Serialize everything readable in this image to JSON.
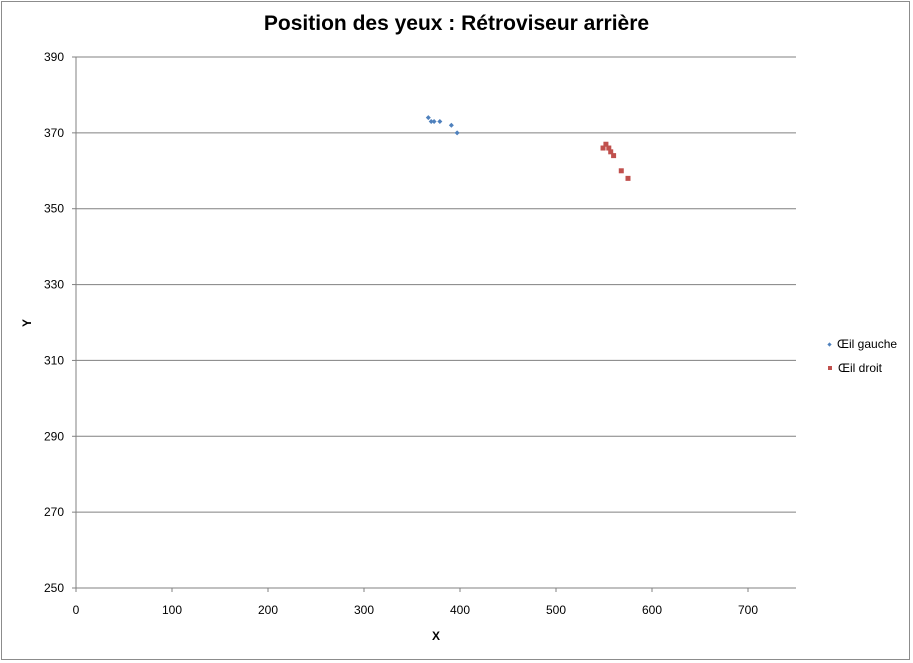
{
  "chart_data": {
    "type": "scatter",
    "title": "Position des yeux :  Rétroviseur arrière",
    "xlabel": "X",
    "ylabel": "Y",
    "xlim": [
      0,
      750
    ],
    "ylim": [
      250,
      390
    ],
    "x_ticks": [
      0,
      100,
      200,
      300,
      400,
      500,
      600,
      700
    ],
    "y_ticks": [
      250,
      270,
      290,
      310,
      330,
      350,
      370,
      390
    ],
    "grid": "horizontal",
    "legend_position": "right",
    "series": [
      {
        "name": "Œil gauche",
        "color": "#4f81bd",
        "marker": "diamond",
        "points": [
          [
            367,
            374
          ],
          [
            370,
            373
          ],
          [
            373,
            373
          ],
          [
            379,
            373
          ],
          [
            391,
            372
          ],
          [
            397,
            370
          ]
        ]
      },
      {
        "name": "Œil droit",
        "color": "#c0504d",
        "marker": "square",
        "points": [
          [
            549,
            366
          ],
          [
            552,
            367
          ],
          [
            555,
            366
          ],
          [
            557,
            365
          ],
          [
            560,
            364
          ],
          [
            568,
            360
          ],
          [
            575,
            358
          ]
        ]
      }
    ]
  }
}
